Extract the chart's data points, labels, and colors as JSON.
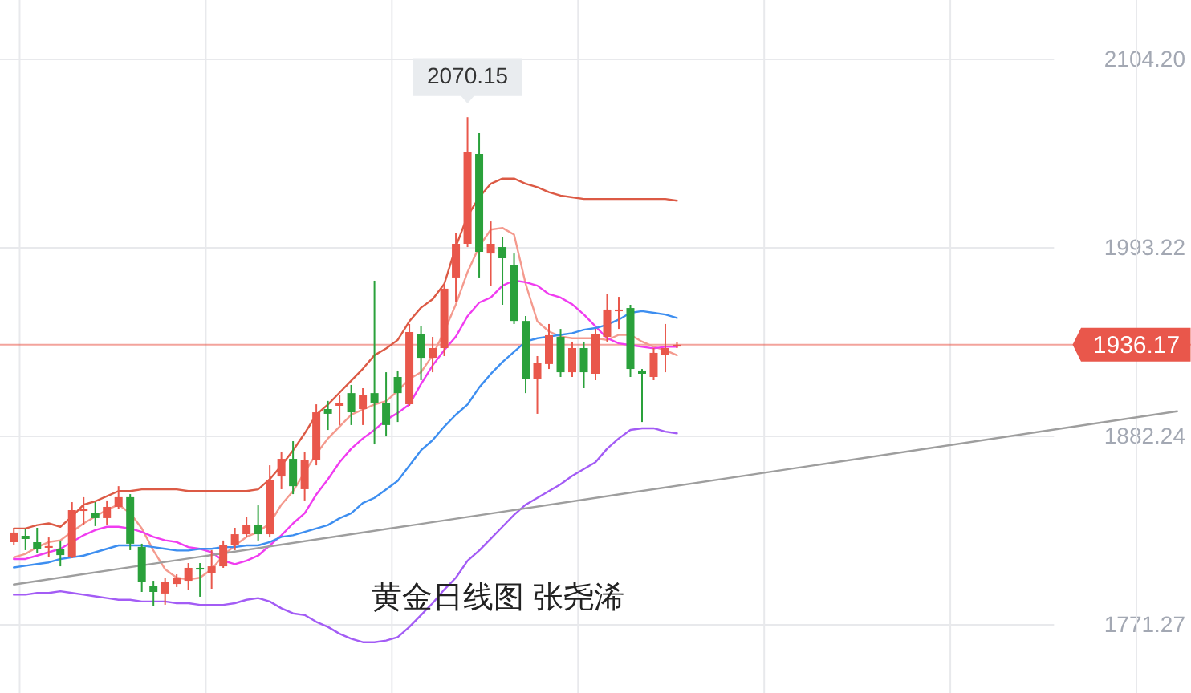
{
  "chart_data": {
    "type": "candlestick",
    "categories": [
      null,
      null,
      null,
      null,
      null,
      null,
      null,
      null,
      null,
      null,
      null,
      null,
      null,
      null,
      null,
      null,
      null,
      null,
      null,
      null,
      null,
      null,
      null,
      null,
      null,
      null,
      null,
      null,
      null,
      null,
      null,
      null,
      null,
      null,
      null,
      null,
      null,
      null,
      null,
      null,
      null,
      null,
      null,
      null,
      null,
      null,
      null,
      null,
      null,
      null,
      null,
      null,
      null,
      null,
      null,
      null,
      null,
      null,
      null,
      null,
      null,
      null,
      null,
      null,
      null,
      null,
      null,
      null,
      null,
      null,
      null,
      null,
      null,
      null,
      null,
      null,
      null,
      null,
      null,
      null,
      null,
      null,
      null,
      null,
      null,
      null,
      null,
      null,
      null,
      null,
      null,
      null,
      null,
      null,
      null,
      null,
      null,
      null,
      null,
      null,
      null
    ],
    "ohlc": [
      [
        1819.9,
        1827.5,
        1818.0,
        1825.6
      ],
      [
        1823.7,
        1827.5,
        1815.2,
        1821.8
      ],
      [
        1819.9,
        1828.4,
        1813.3,
        1816.1
      ],
      [
        1816.6,
        1822.7,
        1811.4,
        1817.6
      ],
      [
        1816.1,
        1820.9,
        1805.7,
        1812.3
      ],
      [
        1811.4,
        1843.5,
        1810.5,
        1838.8
      ],
      [
        1838.3,
        1846.4,
        1830.3,
        1839.7
      ],
      [
        1836.9,
        1843.5,
        1829.4,
        1834.1
      ],
      [
        1834.1,
        1844.5,
        1830.3,
        1840.7
      ],
      [
        1840.7,
        1852.9,
        1839.7,
        1846.4
      ],
      [
        1846.4,
        1848.2,
        1815.2,
        1819.0
      ],
      [
        1817.1,
        1819.0,
        1790.6,
        1796.3
      ],
      [
        1794.4,
        1797.2,
        1782.1,
        1790.6
      ],
      [
        1789.7,
        1799.1,
        1783.1,
        1796.3
      ],
      [
        1795.3,
        1801.0,
        1793.5,
        1799.1
      ],
      [
        1797.2,
        1807.6,
        1791.6,
        1804.8
      ],
      [
        1804.8,
        1807.6,
        1787.8,
        1803.8
      ],
      [
        1801.9,
        1815.2,
        1792.5,
        1805.7
      ],
      [
        1805.7,
        1820.9,
        1804.8,
        1818.0
      ],
      [
        1818.0,
        1828.4,
        1815.2,
        1824.6
      ],
      [
        1824.6,
        1835.0,
        1822.7,
        1830.3
      ],
      [
        1830.3,
        1841.6,
        1820.9,
        1824.6
      ],
      [
        1824.6,
        1865.2,
        1822.7,
        1856.7
      ],
      [
        1858.6,
        1872.8,
        1851.1,
        1869.0
      ],
      [
        1869.0,
        1879.4,
        1848.2,
        1852.9
      ],
      [
        1851.1,
        1872.8,
        1844.5,
        1868.1
      ],
      [
        1868.1,
        1901.1,
        1865.2,
        1896.4
      ],
      [
        1898.3,
        1903.1,
        1886.0,
        1895.5
      ],
      [
        1900.2,
        1906.8,
        1888.9,
        1902.1
      ],
      [
        1907.7,
        1912.5,
        1888.9,
        1896.4
      ],
      [
        1898.3,
        1910.6,
        1888.9,
        1906.8
      ],
      [
        1907.7,
        1973.9,
        1877.5,
        1902.1
      ],
      [
        1902.1,
        1920.0,
        1882.2,
        1888.9
      ],
      [
        1917.2,
        1921.0,
        1890.7,
        1907.7
      ],
      [
        1901.1,
        1948.4,
        1900.2,
        1943.6
      ],
      [
        1942.7,
        1947.4,
        1915.3,
        1928.5
      ],
      [
        1928.5,
        1940.8,
        1920.0,
        1934.2
      ],
      [
        1934.2,
        1972.0,
        1929.5,
        1969.2
      ],
      [
        1975.8,
        2002.2,
        1961.6,
        1995.6
      ],
      [
        1995.6,
        2070.15,
        1993.7,
        2049.4
      ],
      [
        2048.5,
        2060.8,
        1975.8,
        1990.9
      ],
      [
        1989.9,
        2008.8,
        1971.0,
        1995.6
      ],
      [
        1993.7,
        1999.4,
        1959.7,
        1987.1
      ],
      [
        1983.3,
        1989.9,
        1948.4,
        1950.2
      ],
      [
        1950.2,
        1953.1,
        1907.7,
        1916.2
      ],
      [
        1916.2,
        1929.5,
        1895.5,
        1925.7
      ],
      [
        1924.8,
        1948.4,
        1921.9,
        1941.8
      ],
      [
        1940.8,
        1945.5,
        1917.2,
        1920.0
      ],
      [
        1920.0,
        1938.0,
        1917.2,
        1934.2
      ],
      [
        1934.2,
        1938.0,
        1910.6,
        1920.0
      ],
      [
        1919.1,
        1945.5,
        1915.3,
        1942.7
      ],
      [
        1940.8,
        1966.3,
        1938.0,
        1956.9
      ],
      [
        1955.9,
        1964.4,
        1945.5,
        1956.9
      ],
      [
        1957.8,
        1959.7,
        1917.2,
        1921.9
      ],
      [
        1921.0,
        1921.9,
        1890.7,
        1919.1
      ],
      [
        1917.2,
        1934.2,
        1915.3,
        1931.4
      ],
      [
        1930.4,
        1948.4,
        1920.0,
        1934.2
      ],
      [
        1935.1,
        1938.0,
        1934.2,
        1936.17
      ],
      null,
      null,
      null,
      null,
      null,
      null,
      null,
      null,
      null,
      null,
      null,
      null,
      null,
      null,
      null,
      null,
      null,
      null,
      null,
      null,
      null,
      null,
      null,
      null,
      null,
      null,
      null,
      null,
      null,
      null,
      null,
      null,
      null,
      null,
      null,
      null,
      null,
      null,
      null,
      null,
      null,
      null,
      null
    ],
    "colors": [
      "#e9574b",
      "#2aa13b",
      "#2aa13b",
      "#e9574b",
      "#2aa13b",
      "#e9574b",
      "#e9574b",
      "#2aa13b",
      "#e9574b",
      "#e9574b",
      "#2aa13b",
      "#2aa13b",
      "#2aa13b",
      "#e9574b",
      "#e9574b",
      "#e9574b",
      "#2aa13b",
      "#e9574b",
      "#e9574b",
      "#e9574b",
      "#e9574b",
      "#2aa13b",
      "#e9574b",
      "#e9574b",
      "#2aa13b",
      "#e9574b",
      "#e9574b",
      "#2aa13b",
      "#e9574b",
      "#2aa13b",
      "#e9574b",
      "#2aa13b",
      "#2aa13b",
      "#2aa13b",
      "#e9574b",
      "#2aa13b",
      "#e9574b",
      "#e9574b",
      "#e9574b",
      "#e9574b",
      "#2aa13b",
      "#e9574b",
      "#2aa13b",
      "#2aa13b",
      "#2aa13b",
      "#e9574b",
      "#e9574b",
      "#2aa13b",
      "#e9574b",
      "#2aa13b",
      "#e9574b",
      "#e9574b",
      "#e9574b",
      "#2aa13b",
      "#2aa13b",
      "#e9574b",
      "#e9574b",
      "#e9574b",
      null,
      null,
      null,
      null,
      null,
      null,
      null,
      null,
      null,
      null,
      null,
      null,
      null,
      null,
      null,
      null,
      null,
      null,
      null,
      null,
      null,
      null,
      null,
      null,
      null,
      null,
      null,
      null,
      null,
      null,
      null,
      null,
      null,
      null,
      null,
      null,
      null,
      null,
      null,
      null,
      null,
      null,
      null
    ],
    "series": [
      {
        "type": "line",
        "color": "#dc5a45",
        "values": [
          1828,
          1828,
          1830,
          1831,
          1829,
          1835,
          1842,
          1844,
          1847,
          1850,
          1850,
          1851,
          1851,
          1851,
          1851,
          1850,
          1850,
          1850,
          1850,
          1850,
          1850,
          1851,
          1857,
          1865,
          1874,
          1884,
          1895,
          1901,
          1908,
          1915,
          1922,
          1930,
          1934,
          1939,
          1950,
          1958,
          1963,
          1972,
          1994,
          2012,
          2023,
          2031,
          2034,
          2034,
          2031,
          2029,
          2026,
          2024,
          2023,
          2022,
          2022,
          2022,
          2022,
          2022,
          2022,
          2022,
          2022,
          2021,
          null,
          null,
          null,
          null,
          null,
          null,
          null,
          null,
          null,
          null,
          null,
          null,
          null,
          null,
          null,
          null,
          null,
          null,
          null,
          null,
          null,
          null,
          null,
          null,
          null,
          null,
          null,
          null,
          null,
          null,
          null,
          null,
          null,
          null,
          null,
          null,
          null,
          null,
          null,
          null,
          null,
          null,
          null
        ]
      },
      {
        "type": "line",
        "color": "#f49a8e",
        "values": [
          1811,
          1813,
          1817,
          1820,
          1821,
          1826,
          1831,
          1835,
          1839,
          1842,
          1837,
          1828,
          1815,
          1804,
          1799,
          1798,
          1799,
          1804,
          1812,
          1818,
          1823,
          1826,
          1831,
          1842,
          1850,
          1861,
          1872,
          1881,
          1888,
          1895,
          1898,
          1901,
          1903,
          1909,
          1916,
          1920,
          1930,
          1944,
          1960,
          1979,
          1994,
          2004,
          2005,
          2001,
          1972,
          1950,
          1944,
          1941,
          1940,
          1940,
          1940,
          1939,
          1942,
          1942,
          1938,
          1935,
          1933,
          1930,
          null,
          null,
          null,
          null,
          null,
          null,
          null,
          null,
          null,
          null,
          null,
          null,
          null,
          null,
          null,
          null,
          null,
          null,
          null,
          null,
          null,
          null,
          null,
          null,
          null,
          null,
          null,
          null,
          null,
          null,
          null,
          null,
          null,
          null,
          null,
          null,
          null,
          null,
          null,
          null,
          null,
          null,
          null
        ]
      },
      {
        "type": "line",
        "color": "#f03cf0",
        "values": [
          1810,
          1810,
          1812,
          1814,
          1816,
          1820,
          1824,
          1827,
          1829,
          1829,
          1828,
          1826,
          1823,
          1821,
          1820,
          1817,
          1816,
          1814,
          1809,
          1807,
          1809,
          1812,
          1818,
          1824,
          1831,
          1837,
          1848,
          1857,
          1867,
          1875,
          1881,
          1886,
          1892,
          1896,
          1901,
          1913,
          1924,
          1933,
          1941,
          1953,
          1961,
          1964,
          1971,
          1974,
          1973,
          1971,
          1966,
          1964,
          1960,
          1954,
          1947,
          1940,
          1937,
          1936,
          1935,
          1934,
          1935,
          1935,
          null,
          null,
          null,
          null,
          null,
          null,
          null,
          null,
          null,
          null,
          null,
          null,
          null,
          null,
          null,
          null,
          null,
          null,
          null,
          null,
          null,
          null,
          null,
          null,
          null,
          null,
          null,
          null,
          null,
          null,
          null,
          null,
          null,
          null,
          null,
          null,
          null,
          null,
          null,
          null,
          null,
          null,
          null
        ]
      },
      {
        "type": "line",
        "color": "#3d8ef0",
        "values": [
          1805,
          1806,
          1807,
          1808,
          1810,
          1811,
          1812,
          1814,
          1816,
          1818,
          1818,
          1818,
          1817,
          1816,
          1815,
          1815,
          1816,
          1816,
          1817,
          1817,
          1818,
          1818,
          1820,
          1823,
          1824,
          1826,
          1828,
          1830,
          1834,
          1837,
          1843,
          1846,
          1851,
          1856,
          1865,
          1874,
          1880,
          1888,
          1895,
          1901,
          1911,
          1919,
          1926,
          1932,
          1938,
          1940,
          1941,
          1942,
          1943,
          1945,
          1946,
          1948,
          1951,
          1955,
          1956,
          1955,
          1954,
          1952,
          null,
          null,
          null,
          null,
          null,
          null,
          null,
          null,
          null,
          null,
          null,
          null,
          null,
          null,
          null,
          null,
          null,
          null,
          null,
          null,
          null,
          null,
          null,
          null,
          null,
          null,
          null,
          null,
          null,
          null,
          null,
          null,
          null,
          null,
          null,
          null,
          null,
          null,
          null,
          null,
          null,
          null,
          null
        ]
      },
      {
        "type": "line",
        "color": "#a35cf5",
        "values": [
          1789,
          1789,
          1790,
          1790,
          1791,
          1790,
          1789,
          1788,
          1787,
          1786,
          1786,
          1785,
          1785,
          1785,
          1784,
          1784,
          1783,
          1783,
          1783,
          1784,
          1786,
          1787,
          1785,
          1781,
          1778,
          1777,
          1773,
          1770,
          1766,
          1763,
          1761,
          1761,
          1762,
          1764,
          1770,
          1777,
          1784,
          1792,
          1799,
          1809,
          1815,
          1822,
          1829,
          1836,
          1842,
          1846,
          1850,
          1854,
          1859,
          1863,
          1867,
          1875,
          1881,
          1886,
          1887,
          1887,
          1885,
          1884,
          null,
          null,
          null,
          null,
          null,
          null,
          null,
          null,
          null,
          null,
          null,
          null,
          null,
          null,
          null,
          null,
          null,
          null,
          null,
          null,
          null,
          null,
          null,
          null,
          null,
          null,
          null,
          null,
          null,
          null,
          null,
          null,
          null,
          null,
          null,
          null,
          null,
          null,
          null,
          null,
          null,
          null,
          null
        ]
      },
      {
        "type": "line",
        "color": "#9e9e9e",
        "values": [
          1795,
          null,
          null,
          null,
          null,
          null,
          null,
          null,
          null,
          null,
          null,
          null,
          null,
          null,
          null,
          null,
          null,
          null,
          null,
          null,
          null,
          null,
          null,
          null,
          null,
          null,
          null,
          null,
          null,
          null,
          null,
          null,
          null,
          null,
          null,
          null,
          null,
          null,
          null,
          null,
          null,
          null,
          null,
          null,
          null,
          null,
          null,
          null,
          null,
          null,
          null,
          null,
          null,
          null,
          null,
          null,
          null,
          null,
          null,
          null,
          null,
          null,
          null,
          null,
          null,
          null,
          null,
          null,
          null,
          null,
          null,
          null,
          null,
          null,
          null,
          null,
          null,
          null,
          null,
          null,
          null,
          null,
          null,
          null,
          null,
          null,
          null,
          null,
          null,
          null,
          null,
          null,
          null,
          null,
          null,
          null,
          null,
          null,
          null,
          null,
          1897
        ]
      }
    ],
    "ylim": [
      1731.1,
      2139.2
    ],
    "yticks": [
      1771.27,
      1882.24,
      1993.22,
      {
        "value": 2104.2,
        "label": "2104.20"
      }
    ],
    "tick_labels": "y",
    "grid": true,
    "ref_lines": [
      {
        "axis": "y",
        "value": 1936.17,
        "label": "1936.17",
        "color": "#e9574b"
      }
    ],
    "annotations": [
      {
        "text": "2070.15",
        "y": 2070.15
      },
      "黄金日线图  张尧浠"
    ]
  }
}
